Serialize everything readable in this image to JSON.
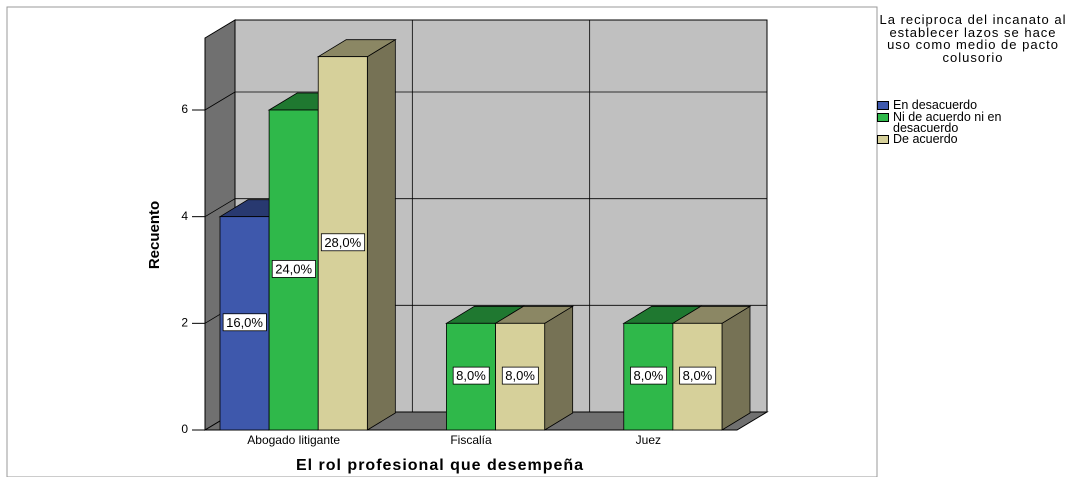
{
  "chart_data": {
    "type": "bar3d",
    "x_label": "El rol profesional que desempeña",
    "y_label": "Recuento",
    "legend_title": "La reciproca del incanato al establecer lazos se hace uso como medio de pacto colusorio",
    "legend_position": "right",
    "categories": [
      "Abogado litigante",
      "Fiscalía",
      "Juez"
    ],
    "series": [
      {
        "name": "En desacuerdo",
        "color": "#3e58ac",
        "values": [
          4,
          null,
          null
        ],
        "percentages": [
          16,
          null,
          null
        ],
        "percentage_labels": [
          "16,0%",
          null,
          null
        ]
      },
      {
        "name": "Ni de acuerdo ni en desacuerdo",
        "color": "#2fb84a",
        "values": [
          6,
          2,
          2
        ],
        "percentages": [
          24,
          8,
          8
        ],
        "percentage_labels": [
          "24,0%",
          "8,0%",
          "8,0%"
        ]
      },
      {
        "name": "De acuerdo",
        "color": "#d6d09a",
        "values": [
          7,
          2,
          2
        ],
        "percentages": [
          28,
          8,
          8
        ],
        "percentage_labels": [
          "28,0%",
          "8,0%",
          "8,0%"
        ]
      }
    ],
    "ylim": [
      0,
      7.35
    ],
    "yticks": [
      0,
      2,
      4,
      6
    ],
    "grid": true
  }
}
